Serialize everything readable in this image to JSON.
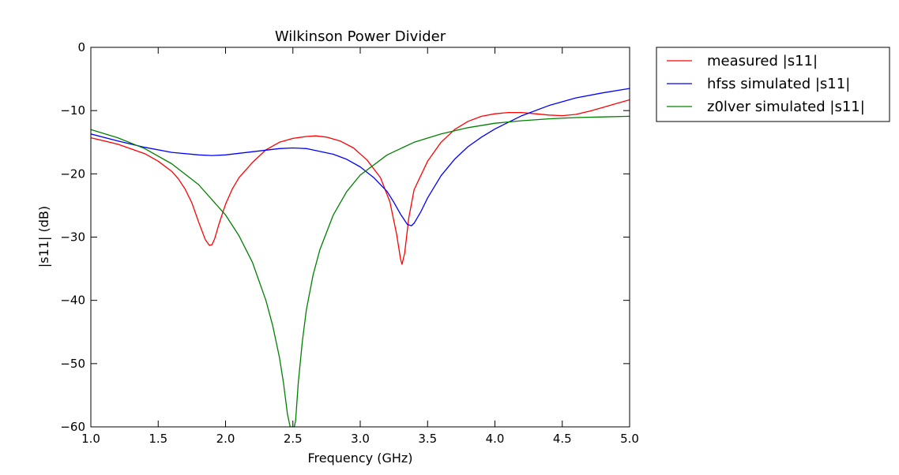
{
  "chart_data": {
    "type": "line",
    "title": "Wilkinson Power Divider",
    "xlabel": "Frequency (GHz)",
    "ylabel": "|s11| (dB)",
    "xlim": [
      1.0,
      5.0
    ],
    "ylim": [
      -60,
      0
    ],
    "xticks": [
      1.0,
      1.5,
      2.0,
      2.5,
      3.0,
      3.5,
      4.0,
      4.5,
      5.0
    ],
    "xtick_labels": [
      "1.0",
      "1.5",
      "2.0",
      "2.5",
      "3.0",
      "3.5",
      "4.0",
      "4.5",
      "5.0"
    ],
    "yticks": [
      0,
      -10,
      -20,
      -30,
      -40,
      -50,
      -60
    ],
    "ytick_labels": [
      "0",
      "−10",
      "−20",
      "−30",
      "−40",
      "−50",
      "−60"
    ],
    "grid": false,
    "legend_position": "outside-right-top",
    "series": [
      {
        "name": "measured |s11|",
        "color": "#ff0000",
        "x": [
          1.0,
          1.2,
          1.4,
          1.5,
          1.6,
          1.65,
          1.7,
          1.75,
          1.8,
          1.85,
          1.88,
          1.9,
          1.92,
          1.95,
          2.0,
          2.05,
          2.1,
          2.2,
          2.3,
          2.4,
          2.5,
          2.6,
          2.67,
          2.75,
          2.85,
          2.95,
          3.05,
          3.15,
          3.22,
          3.27,
          3.3,
          3.31,
          3.33,
          3.36,
          3.4,
          3.5,
          3.6,
          3.7,
          3.8,
          3.9,
          4.0,
          4.1,
          4.2,
          4.3,
          4.4,
          4.5,
          4.6,
          4.7,
          4.8,
          4.9,
          5.0
        ],
        "y": [
          -14.3,
          -15.3,
          -16.8,
          -18.0,
          -19.6,
          -20.8,
          -22.4,
          -24.6,
          -27.6,
          -30.4,
          -31.3,
          -31.2,
          -30.2,
          -28.0,
          -24.8,
          -22.4,
          -20.6,
          -18.2,
          -16.2,
          -15.0,
          -14.4,
          -14.1,
          -14.0,
          -14.2,
          -14.8,
          -15.9,
          -17.8,
          -20.6,
          -24.4,
          -29.5,
          -33.5,
          -34.3,
          -32.5,
          -27.0,
          -22.5,
          -18.0,
          -15.0,
          -13.0,
          -11.7,
          -10.9,
          -10.5,
          -10.3,
          -10.3,
          -10.5,
          -10.7,
          -10.8,
          -10.6,
          -10.1,
          -9.5,
          -8.9,
          -8.3
        ]
      },
      {
        "name": "hfss simulated |s11|",
        "color": "#0000ff",
        "x": [
          1.0,
          1.2,
          1.4,
          1.6,
          1.8,
          1.9,
          2.0,
          2.2,
          2.4,
          2.5,
          2.6,
          2.8,
          2.9,
          3.0,
          3.1,
          3.2,
          3.25,
          3.3,
          3.35,
          3.38,
          3.4,
          3.45,
          3.5,
          3.6,
          3.7,
          3.8,
          3.9,
          4.0,
          4.2,
          4.4,
          4.6,
          4.8,
          5.0
        ],
        "y": [
          -13.7,
          -14.8,
          -15.8,
          -16.6,
          -17.0,
          -17.1,
          -17.0,
          -16.5,
          -16.0,
          -15.9,
          -16.0,
          -16.9,
          -17.7,
          -18.9,
          -20.6,
          -22.8,
          -24.5,
          -26.4,
          -28.0,
          -28.2,
          -27.8,
          -26.0,
          -23.8,
          -20.3,
          -17.7,
          -15.7,
          -14.2,
          -12.9,
          -10.8,
          -9.2,
          -8.0,
          -7.2,
          -6.5
        ]
      },
      {
        "name": "z0lver simulated |s11|",
        "color": "#008000",
        "x": [
          1.0,
          1.2,
          1.4,
          1.6,
          1.8,
          2.0,
          2.1,
          2.2,
          2.3,
          2.35,
          2.4,
          2.43,
          2.46,
          2.48,
          2.49,
          2.5,
          2.51,
          2.52,
          2.54,
          2.57,
          2.6,
          2.65,
          2.7,
          2.8,
          2.9,
          3.0,
          3.2,
          3.4,
          3.6,
          3.8,
          4.0,
          4.2,
          4.4,
          4.6,
          4.8,
          5.0
        ],
        "y": [
          -13.0,
          -14.3,
          -16.0,
          -18.4,
          -21.7,
          -26.5,
          -29.8,
          -34.0,
          -40.0,
          -44.0,
          -49.0,
          -53.0,
          -58.0,
          -60.0,
          -60.0,
          -60.0,
          -60.0,
          -59.0,
          -53.0,
          -46.5,
          -41.5,
          -36.0,
          -32.0,
          -26.5,
          -22.8,
          -20.2,
          -17.0,
          -15.0,
          -13.7,
          -12.7,
          -12.0,
          -11.6,
          -11.3,
          -11.1,
          -11.0,
          -10.9
        ]
      }
    ]
  }
}
